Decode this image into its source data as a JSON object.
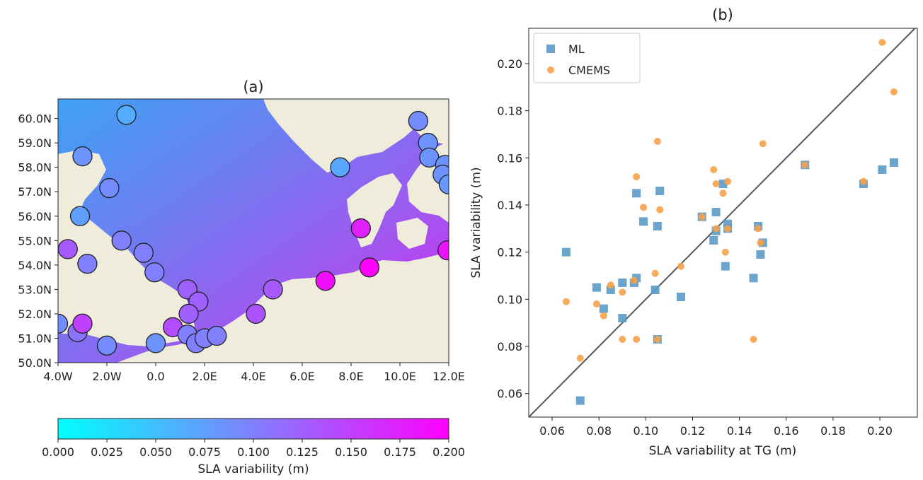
{
  "panel_a": {
    "title": "(a)",
    "x_ticks": [
      "4.0W",
      "2.0W",
      "0.0",
      "2.0E",
      "4.0E",
      "6.0E",
      "8.0E",
      "10.0E",
      "12.0E"
    ],
    "y_ticks": [
      "50.0N",
      "51.0N",
      "52.0N",
      "53.0N",
      "54.0N",
      "55.0N",
      "56.0N",
      "57.0N",
      "58.0N",
      "59.0N",
      "60.0N"
    ],
    "colorbar": {
      "label": "SLA variability (m)",
      "ticks": [
        "0.000",
        "0.025",
        "0.050",
        "0.075",
        "0.100",
        "0.125",
        "0.150",
        "0.175",
        "0.200"
      ],
      "range": [
        0.0,
        0.2
      ],
      "colors": [
        "#00ffff",
        "#ff00ff"
      ]
    },
    "colors": {
      "land": "#efecdc",
      "marker_edge": "#222222"
    }
  },
  "panel_b": {
    "title": "(b)",
    "x_label": "SLA variability at TG (m)",
    "y_label": "SLA variability (m)",
    "x_ticks": [
      "0.06",
      "0.08",
      "0.10",
      "0.12",
      "0.14",
      "0.16",
      "0.18",
      "0.20"
    ],
    "y_ticks": [
      "0.06",
      "0.08",
      "0.10",
      "0.12",
      "0.14",
      "0.16",
      "0.18",
      "0.20"
    ],
    "legend": {
      "ml": "ML",
      "cmems": "CMEMS"
    },
    "colors": {
      "ml": "#5b9bc8",
      "cmems": "#f7a24a",
      "line": "#555555"
    }
  },
  "chart_data": [
    {
      "type": "scatter",
      "title": "(a)",
      "xlim": [
        -4.0,
        12.0
      ],
      "ylim": [
        50.0,
        60.8
      ],
      "color_scale": {
        "min": 0.0,
        "max": 0.2,
        "label": "SLA variability (m)"
      },
      "points": [
        {
          "lon": -1.2,
          "lat": 60.15,
          "v": 0.065
        },
        {
          "lon": 10.75,
          "lat": 59.9,
          "v": 0.09
        },
        {
          "lon": 11.15,
          "lat": 59.0,
          "v": 0.085
        },
        {
          "lon": 11.2,
          "lat": 58.4,
          "v": 0.085
        },
        {
          "lon": 11.85,
          "lat": 58.1,
          "v": 0.085
        },
        {
          "lon": 11.75,
          "lat": 57.7,
          "v": 0.085
        },
        {
          "lon": 12.0,
          "lat": 57.3,
          "v": 0.08
        },
        {
          "lon": 7.55,
          "lat": 58.0,
          "v": 0.07
        },
        {
          "lon": -3.0,
          "lat": 58.45,
          "v": 0.085
        },
        {
          "lon": -1.9,
          "lat": 57.15,
          "v": 0.09
        },
        {
          "lon": -3.1,
          "lat": 56.0,
          "v": 0.075
        },
        {
          "lon": -1.4,
          "lat": 55.0,
          "v": 0.1
        },
        {
          "lon": -0.5,
          "lat": 54.5,
          "v": 0.1
        },
        {
          "lon": -3.6,
          "lat": 54.65,
          "v": 0.13
        },
        {
          "lon": -2.8,
          "lat": 54.05,
          "v": 0.1
        },
        {
          "lon": -0.05,
          "lat": 53.7,
          "v": 0.1
        },
        {
          "lon": 1.3,
          "lat": 53.0,
          "v": 0.125
        },
        {
          "lon": 1.75,
          "lat": 52.5,
          "v": 0.125
        },
        {
          "lon": 1.35,
          "lat": 52.0,
          "v": 0.125
        },
        {
          "lon": 0.7,
          "lat": 51.45,
          "v": 0.14
        },
        {
          "lon": 1.3,
          "lat": 51.15,
          "v": 0.1
        },
        {
          "lon": 1.65,
          "lat": 50.8,
          "v": 0.1
        },
        {
          "lon": 2.0,
          "lat": 51.0,
          "v": 0.1
        },
        {
          "lon": 2.5,
          "lat": 51.1,
          "v": 0.1
        },
        {
          "lon": 4.1,
          "lat": 52.0,
          "v": 0.135
        },
        {
          "lon": 4.8,
          "lat": 53.0,
          "v": 0.13
        },
        {
          "lon": 6.95,
          "lat": 53.35,
          "v": 0.19
        },
        {
          "lon": 8.75,
          "lat": 53.9,
          "v": 0.2
        },
        {
          "lon": 8.4,
          "lat": 55.5,
          "v": 0.175
        },
        {
          "lon": 11.95,
          "lat": 54.6,
          "v": 0.185
        },
        {
          "lon": -4.0,
          "lat": 51.6,
          "v": 0.09
        },
        {
          "lon": -3.2,
          "lat": 51.25,
          "v": 0.11
        },
        {
          "lon": -3.0,
          "lat": 51.6,
          "v": 0.15
        },
        {
          "lon": -2.0,
          "lat": 50.7,
          "v": 0.09
        },
        {
          "lon": 0.0,
          "lat": 50.8,
          "v": 0.085
        }
      ]
    },
    {
      "type": "scatter",
      "title": "(b)",
      "xlabel": "SLA variability at TG (m)",
      "ylabel": "SLA variability (m)",
      "xlim": [
        0.05,
        0.216
      ],
      "ylim": [
        0.05,
        0.215
      ],
      "legend_position": "upper left",
      "identity_line": true,
      "series": [
        {
          "name": "ML",
          "marker": "square",
          "points": [
            [
              0.066,
              0.12
            ],
            [
              0.072,
              0.057
            ],
            [
              0.079,
              0.105
            ],
            [
              0.082,
              0.096
            ],
            [
              0.085,
              0.104
            ],
            [
              0.09,
              0.107
            ],
            [
              0.09,
              0.092
            ],
            [
              0.095,
              0.107
            ],
            [
              0.096,
              0.109
            ],
            [
              0.096,
              0.145
            ],
            [
              0.099,
              0.133
            ],
            [
              0.104,
              0.104
            ],
            [
              0.105,
              0.083
            ],
            [
              0.105,
              0.131
            ],
            [
              0.106,
              0.146
            ],
            [
              0.115,
              0.101
            ],
            [
              0.124,
              0.135
            ],
            [
              0.129,
              0.125
            ],
            [
              0.13,
              0.129
            ],
            [
              0.13,
              0.137
            ],
            [
              0.133,
              0.149
            ],
            [
              0.134,
              0.114
            ],
            [
              0.135,
              0.132
            ],
            [
              0.135,
              0.13
            ],
            [
              0.146,
              0.109
            ],
            [
              0.148,
              0.131
            ],
            [
              0.149,
              0.119
            ],
            [
              0.15,
              0.124
            ],
            [
              0.168,
              0.157
            ],
            [
              0.193,
              0.149
            ],
            [
              0.201,
              0.155
            ],
            [
              0.206,
              0.158
            ]
          ]
        },
        {
          "name": "CMEMS",
          "marker": "circle",
          "points": [
            [
              0.066,
              0.099
            ],
            [
              0.072,
              0.075
            ],
            [
              0.079,
              0.098
            ],
            [
              0.082,
              0.093
            ],
            [
              0.085,
              0.106
            ],
            [
              0.09,
              0.103
            ],
            [
              0.09,
              0.083
            ],
            [
              0.095,
              0.108
            ],
            [
              0.096,
              0.152
            ],
            [
              0.096,
              0.083
            ],
            [
              0.099,
              0.139
            ],
            [
              0.104,
              0.111
            ],
            [
              0.105,
              0.083
            ],
            [
              0.105,
              0.167
            ],
            [
              0.106,
              0.138
            ],
            [
              0.115,
              0.114
            ],
            [
              0.124,
              0.135
            ],
            [
              0.129,
              0.155
            ],
            [
              0.13,
              0.149
            ],
            [
              0.13,
              0.13
            ],
            [
              0.133,
              0.145
            ],
            [
              0.134,
              0.12
            ],
            [
              0.135,
              0.15
            ],
            [
              0.135,
              0.13
            ],
            [
              0.146,
              0.083
            ],
            [
              0.148,
              0.13
            ],
            [
              0.149,
              0.124
            ],
            [
              0.15,
              0.166
            ],
            [
              0.168,
              0.157
            ],
            [
              0.193,
              0.15
            ],
            [
              0.201,
              0.209
            ],
            [
              0.206,
              0.188
            ]
          ]
        }
      ]
    }
  ]
}
